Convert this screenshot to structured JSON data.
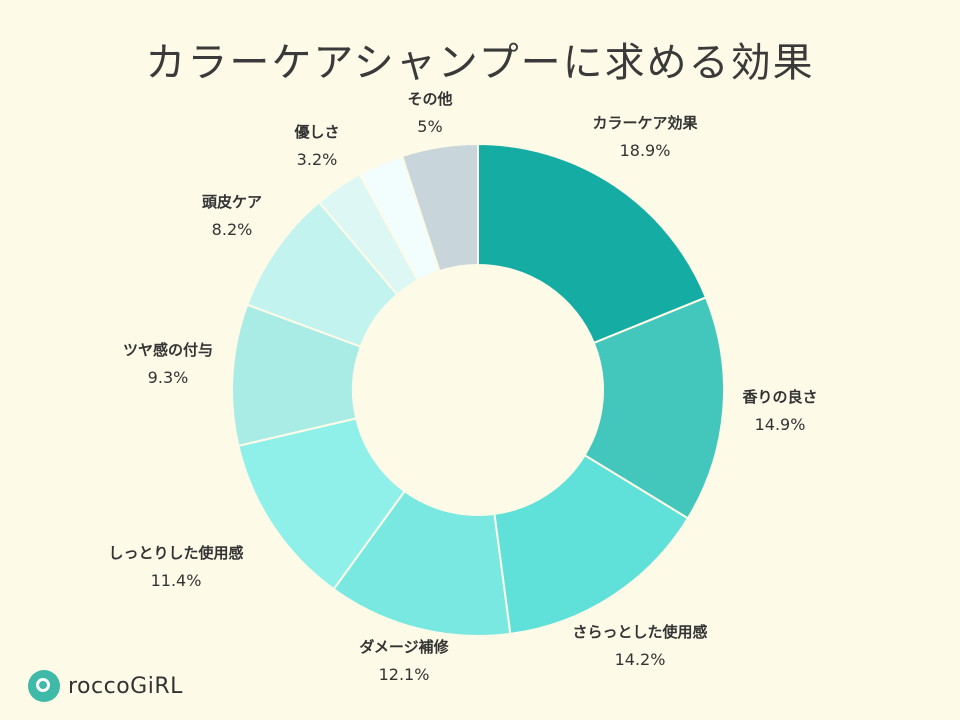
{
  "title": "カラーケアシャンプーに求める効果",
  "logo": {
    "text": "roccoGiRL",
    "color": "#3fb9a8"
  },
  "chart_data": {
    "type": "pie",
    "donut": true,
    "title": "カラーケアシャンプーに求める効果",
    "slices": [
      {
        "label": "カラーケア効果",
        "value": 18.9,
        "display": "18.9%",
        "color": "#15ada3"
      },
      {
        "label": "香りの良さ",
        "value": 14.9,
        "display": "14.9%",
        "color": "#43c7bd"
      },
      {
        "label": "さらっとした使用感",
        "value": 14.2,
        "display": "14.2%",
        "color": "#5fe0d8"
      },
      {
        "label": "ダメージ補修",
        "value": 12.1,
        "display": "12.1%",
        "color": "#78e8e0"
      },
      {
        "label": "しっとりした使用感",
        "value": 11.4,
        "display": "11.4%",
        "color": "#8ff0ea"
      },
      {
        "label": "ツヤ感の付与",
        "value": 9.3,
        "display": "9.3%",
        "color": "#a9ece6"
      },
      {
        "label": "頭皮ケア",
        "value": 8.2,
        "display": "8.2%",
        "color": "#c3f3ef"
      },
      {
        "label": "優しさ",
        "value": 3.2,
        "display": "3.2%",
        "color": "#dcf7f4"
      },
      {
        "label": "",
        "value": 3.0,
        "display": "",
        "color": "#f2fdfd"
      },
      {
        "label": "その他",
        "value": 5.0,
        "display": "5%",
        "color": "#c8d5da"
      }
    ]
  }
}
